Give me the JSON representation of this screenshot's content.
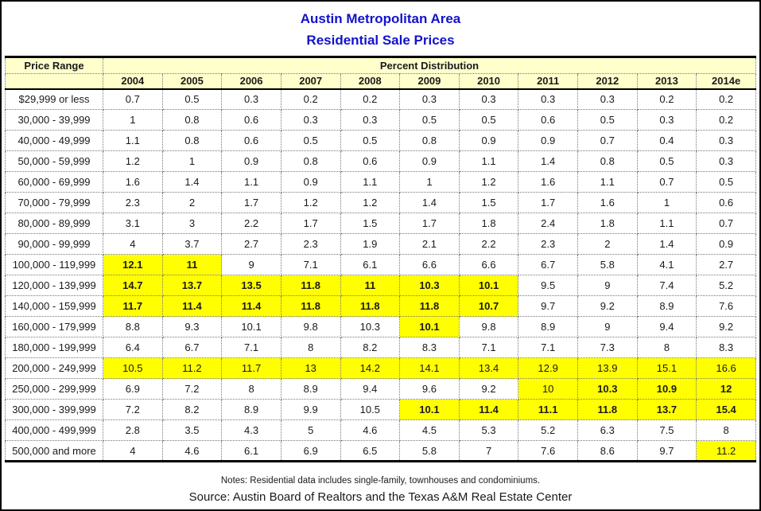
{
  "title": {
    "line1": "Austin Metropolitan Area",
    "line2": "Residential Sale Prices"
  },
  "colors": {
    "title_blue": "#1212CC",
    "header_background": "#FFFFCC",
    "highlight_yellow": "#FFFF00",
    "border_black": "#000000"
  },
  "footer": {
    "notes": "Notes: Residential data includes single-family, townhouses and condominiums.",
    "source": "Source: Austin Board of Realtors and the Texas A&M Real Estate Center"
  },
  "chart_data": {
    "type": "table",
    "title": "Austin Metropolitan Area",
    "subtitle": "Residential Sale Prices",
    "row_header_label": "Price Range",
    "column_group_label": "Percent Distribution",
    "columns": [
      "2004",
      "2005",
      "2006",
      "2007",
      "2008",
      "2009",
      "2010",
      "2011",
      "2012",
      "2013",
      "2014e"
    ],
    "highlight_legend": "yellow = cells highlighted in source table; bold indices shown in bold",
    "rows": [
      {
        "range": "$29,999 or less",
        "values": [
          0.7,
          0.5,
          0.3,
          0.2,
          0.2,
          0.3,
          0.3,
          0.3,
          0.3,
          0.2,
          0.2
        ],
        "yellow": [],
        "bold": []
      },
      {
        "range": "30,000 - 39,999",
        "values": [
          1,
          0.8,
          0.6,
          0.3,
          0.3,
          0.5,
          0.5,
          0.6,
          0.5,
          0.3,
          0.2
        ],
        "yellow": [],
        "bold": []
      },
      {
        "range": "40,000 - 49,999",
        "values": [
          1.1,
          0.8,
          0.6,
          0.5,
          0.5,
          0.8,
          0.9,
          0.9,
          0.7,
          0.4,
          0.3
        ],
        "yellow": [],
        "bold": []
      },
      {
        "range": "50,000 - 59,999",
        "values": [
          1.2,
          1,
          0.9,
          0.8,
          0.6,
          0.9,
          1.1,
          1.4,
          0.8,
          0.5,
          0.3
        ],
        "yellow": [],
        "bold": []
      },
      {
        "range": "60,000 - 69,999",
        "values": [
          1.6,
          1.4,
          1.1,
          0.9,
          1.1,
          1,
          1.2,
          1.6,
          1.1,
          0.7,
          0.5
        ],
        "yellow": [],
        "bold": []
      },
      {
        "range": "70,000 - 79,999",
        "values": [
          2.3,
          2,
          1.7,
          1.2,
          1.2,
          1.4,
          1.5,
          1.7,
          1.6,
          1,
          0.6
        ],
        "yellow": [],
        "bold": []
      },
      {
        "range": "80,000 - 89,999",
        "values": [
          3.1,
          3,
          2.2,
          1.7,
          1.5,
          1.7,
          1.8,
          2.4,
          1.8,
          1.1,
          0.7
        ],
        "yellow": [],
        "bold": []
      },
      {
        "range": "90,000 - 99,999",
        "values": [
          4,
          3.7,
          2.7,
          2.3,
          1.9,
          2.1,
          2.2,
          2.3,
          2,
          1.4,
          0.9
        ],
        "yellow": [],
        "bold": []
      },
      {
        "range": "100,000 - 119,999",
        "values": [
          12.1,
          11,
          9,
          7.1,
          6.1,
          6.6,
          6.6,
          6.7,
          5.8,
          4.1,
          2.7
        ],
        "yellow": [
          0,
          1
        ],
        "bold": [
          0,
          1
        ]
      },
      {
        "range": "120,000 - 139,999",
        "values": [
          14.7,
          13.7,
          13.5,
          11.8,
          11,
          10.3,
          10.1,
          9.5,
          9,
          7.4,
          5.2
        ],
        "yellow": [
          0,
          1,
          2,
          3,
          4,
          5,
          6
        ],
        "bold": [
          0,
          1,
          2,
          3,
          4,
          5,
          6
        ]
      },
      {
        "range": "140,000 - 159,999",
        "values": [
          11.7,
          11.4,
          11.4,
          11.8,
          11.8,
          11.8,
          10.7,
          9.7,
          9.2,
          8.9,
          7.6
        ],
        "yellow": [
          0,
          1,
          2,
          3,
          4,
          5,
          6
        ],
        "bold": [
          0,
          1,
          2,
          3,
          4,
          5,
          6
        ]
      },
      {
        "range": "160,000 - 179,999",
        "values": [
          8.8,
          9.3,
          10.1,
          9.8,
          10.3,
          10.1,
          9.8,
          8.9,
          9,
          9.4,
          9.2
        ],
        "yellow": [
          5
        ],
        "bold": [
          5
        ]
      },
      {
        "range": "180,000 - 199,999",
        "values": [
          6.4,
          6.7,
          7.1,
          8,
          8.2,
          8.3,
          7.1,
          7.1,
          7.3,
          8,
          8.3
        ],
        "yellow": [],
        "bold": []
      },
      {
        "range": "200,000 - 249,999",
        "values": [
          10.5,
          11.2,
          11.7,
          13,
          14.2,
          14.1,
          13.4,
          12.9,
          13.9,
          15.1,
          16.6
        ],
        "yellow": [
          0,
          1,
          2,
          3,
          4,
          5,
          6,
          7,
          8,
          9,
          10
        ],
        "bold": []
      },
      {
        "range": "250,000 - 299,999",
        "values": [
          6.9,
          7.2,
          8,
          8.9,
          9.4,
          9.6,
          9.2,
          10,
          10.3,
          10.9,
          12
        ],
        "yellow": [
          7,
          8,
          9,
          10
        ],
        "bold": [
          8,
          9,
          10
        ]
      },
      {
        "range": "300,000 - 399,999",
        "values": [
          7.2,
          8.2,
          8.9,
          9.9,
          10.5,
          10.1,
          11.4,
          11.1,
          11.8,
          13.7,
          15.4
        ],
        "yellow": [
          5,
          6,
          7,
          8,
          9,
          10
        ],
        "bold": [
          5,
          6,
          7,
          8,
          9,
          10
        ]
      },
      {
        "range": "400,000 - 499,999",
        "values": [
          2.8,
          3.5,
          4.3,
          5,
          4.6,
          4.5,
          5.3,
          5.2,
          6.3,
          7.5,
          8
        ],
        "yellow": [],
        "bold": []
      },
      {
        "range": "500,000 and more",
        "values": [
          4,
          4.6,
          6.1,
          6.9,
          6.5,
          5.8,
          7,
          7.6,
          8.6,
          9.7,
          11.2
        ],
        "yellow": [
          10
        ],
        "bold": []
      }
    ],
    "notes": "Notes: Residential data includes single-family, townhouses and condominiums.",
    "source": "Source: Austin Board of Realtors and the Texas A&M Real Estate Center"
  }
}
